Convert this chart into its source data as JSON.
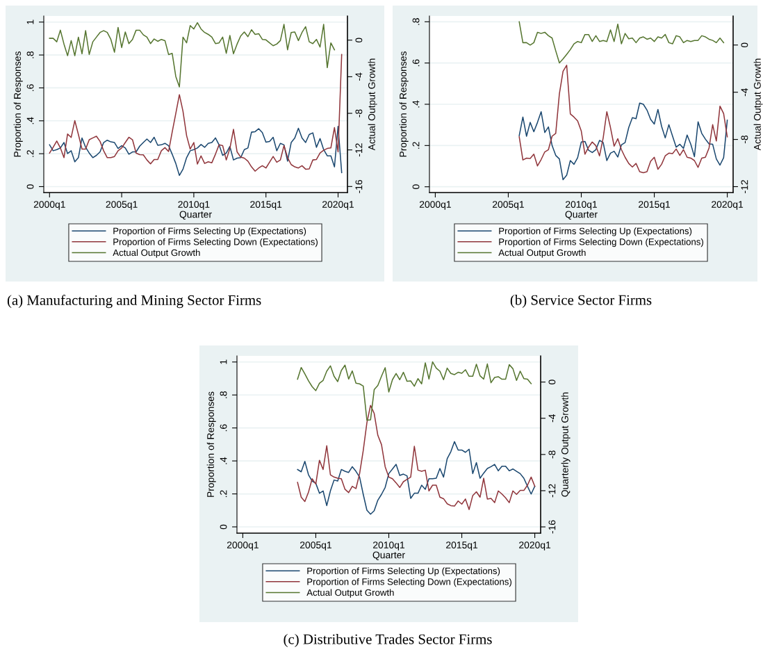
{
  "chart_data": [
    {
      "type": "line",
      "xlabel": "Quarter",
      "ylabel": "Proportion of Responses",
      "y2label": "Actual Output Growth",
      "categories": [
        "2000q1",
        null,
        null,
        null,
        null,
        null,
        null,
        null,
        null,
        null,
        null,
        null,
        null,
        null,
        null,
        null,
        null,
        null,
        null,
        null,
        "2005q1",
        null,
        null,
        null,
        null,
        null,
        null,
        null,
        null,
        null,
        null,
        null,
        null,
        null,
        null,
        null,
        null,
        null,
        null,
        null,
        "2010q1",
        null,
        null,
        null,
        null,
        null,
        null,
        null,
        null,
        null,
        null,
        null,
        null,
        null,
        null,
        null,
        null,
        null,
        null,
        null,
        "2015q1",
        null,
        null,
        null,
        null,
        null,
        null,
        null,
        null,
        null,
        null,
        null,
        null,
        null,
        null,
        null,
        null,
        null,
        null,
        null,
        "2020q1",
        null
      ],
      "ylim": [
        -0.036,
        1.037
      ],
      "yticks": [
        0,
        {
          "value": 0.2,
          "label": ".2"
        },
        {
          "value": 0.4,
          "label": ".4"
        },
        {
          "value": 0.6,
          "label": ".6"
        },
        {
          "value": 0.8,
          "label": ".8"
        },
        1
      ],
      "y2lim": [
        -16.66,
        2.64
      ],
      "y2ticks": [
        -16,
        -12,
        -8,
        -4,
        0
      ],
      "grid": "y",
      "legend": "bottom",
      "annotations": [
        "(a) Manufacturing and Mining Sector Firms"
      ],
      "series": [
        {
          "name": "Proportion of Firms Selecting Up (Expectations)",
          "color": "#1a476f",
          "values": [
            0.254,
            0.218,
            0.225,
            0.235,
            0.268,
            0.201,
            0.218,
            0.151,
            0.176,
            0.296,
            0.239,
            0.204,
            0.176,
            0.19,
            0.211,
            0.268,
            0.282,
            0.272,
            0.268,
            0.232,
            0.249,
            0.235,
            0.197,
            0.211,
            0.211,
            0.246,
            0.268,
            0.289,
            0.268,
            0.3,
            0.251,
            0.254,
            0.263,
            0.249,
            0.197,
            0.141,
            0.068,
            0.106,
            0.176,
            0.218,
            0.225,
            0.235,
            0.256,
            0.239,
            0.263,
            0.268,
            0.296,
            0.254,
            0.19,
            0.204,
            0.244,
            0.162,
            0.173,
            0.176,
            0.225,
            0.235,
            0.331,
            0.334,
            0.352,
            0.328,
            0.27,
            0.275,
            0.3,
            0.218,
            0.263,
            0.254,
            0.155,
            0.268,
            0.296,
            0.355,
            0.296,
            0.268,
            0.317,
            0.327,
            0.239,
            0.292,
            0.225,
            0.187,
            0.187,
            0.12,
            0.366,
            0.085
          ]
        },
        {
          "name": "Proportion of Firms Selecting Down (Expectations)",
          "color": "#90353b",
          "values": [
            0.204,
            0.239,
            0.277,
            0.235,
            0.176,
            0.32,
            0.299,
            0.401,
            0.317,
            0.228,
            0.228,
            0.285,
            0.296,
            0.306,
            0.275,
            0.218,
            0.176,
            0.176,
            0.183,
            0.218,
            0.235,
            0.268,
            0.3,
            0.285,
            0.204,
            0.194,
            0.193,
            0.162,
            0.138,
            0.165,
            0.165,
            0.218,
            0.237,
            0.213,
            0.331,
            0.444,
            0.559,
            0.458,
            0.31,
            0.228,
            0.268,
            0.137,
            0.187,
            0.141,
            0.151,
            0.145,
            0.197,
            0.254,
            0.249,
            0.162,
            0.232,
            0.348,
            0.211,
            0.179,
            0.173,
            0.155,
            0.12,
            0.094,
            0.113,
            0.127,
            0.113,
            0.148,
            0.183,
            0.148,
            0.162,
            0.249,
            0.176,
            0.134,
            0.12,
            0.113,
            0.127,
            0.106,
            0.108,
            0.162,
            0.165,
            0.204,
            0.221,
            0.232,
            0.235,
            0.359,
            0.211,
            0.803
          ]
        },
        {
          "name": "Actual Output Growth",
          "color": "#55752f",
          "axis": "y2",
          "values": [
            0.2,
            0.2,
            -0.18,
            1.09,
            -0.43,
            -1.7,
            -0.05,
            -1.7,
            0.33,
            -1.49,
            1.04,
            -1.57,
            -0.18,
            0.33,
            0.84,
            1.04,
            0.84,
            0.08,
            -1.32,
            1.39,
            -0.81,
            0.89,
            -0.38,
            0.08,
            1.09,
            1.09,
            0.58,
            0.33,
            -0.38,
            0.13,
            -0.13,
            0.08,
            -0.05,
            -1.57,
            -1.44,
            -3.97,
            -5.11,
            0.33,
            -0.3,
            1.59,
            1.22,
            1.9,
            1.22,
            0.84,
            0.63,
            0.33,
            -0.38,
            -0.3,
            0.33,
            -1.44,
            0.51,
            -1.49,
            -0.43,
            0.46,
            0.89,
            0.38,
            1.14,
            0.63,
            0.71,
            0.08,
            0.03,
            -0.3,
            -0.61,
            -0.43,
            -0.05,
            1.72,
            -1.06,
            0.84,
            0.89,
            -0.05,
            0.84,
            1.47,
            -0.18,
            -0.38,
            0.08,
            -0.76,
            1.72,
            -3.01,
            -0.3,
            -1.06,
            null,
            null
          ]
        }
      ]
    },
    {
      "type": "line",
      "xlabel": "Quarter",
      "ylabel": "Proportion of Responses",
      "y2label": "Actual Output Growth",
      "categories": [
        "2000q1",
        null,
        null,
        null,
        null,
        null,
        null,
        null,
        null,
        null,
        null,
        null,
        null,
        null,
        null,
        null,
        null,
        null,
        null,
        null,
        "2005q1",
        null,
        null,
        null,
        null,
        null,
        null,
        null,
        null,
        null,
        null,
        null,
        null,
        null,
        null,
        null,
        null,
        null,
        null,
        null,
        "2010q1",
        null,
        null,
        null,
        null,
        null,
        null,
        null,
        null,
        null,
        null,
        null,
        null,
        null,
        null,
        null,
        null,
        null,
        null,
        null,
        "2015q1",
        null,
        null,
        null,
        null,
        null,
        null,
        null,
        null,
        null,
        null,
        null,
        null,
        null,
        null,
        null,
        null,
        null,
        null,
        null,
        "2020q1"
      ],
      "ylim": [
        -0.028,
        0.828
      ],
      "yticks": [
        0,
        {
          "value": 0.2,
          "label": ".2"
        },
        {
          "value": 0.4,
          "label": ".4"
        },
        {
          "value": 0.6,
          "label": ".6"
        },
        {
          "value": 0.8,
          "label": ".8"
        }
      ],
      "y2lim": [
        -12.5,
        2.46
      ],
      "y2ticks": [
        -12,
        -8,
        -4,
        0
      ],
      "grid": "y",
      "legend": "bottom",
      "annotations": [
        "(b) Service Sector Firms"
      ],
      "series": [
        {
          "name": "Proportion of Firms Selecting Up (Expectations)",
          "color": "#1a476f",
          "values": [
            null,
            null,
            null,
            null,
            null,
            null,
            null,
            null,
            null,
            null,
            null,
            null,
            null,
            null,
            null,
            null,
            null,
            null,
            null,
            null,
            null,
            null,
            null,
            0.248,
            0.338,
            0.245,
            0.312,
            0.267,
            0.312,
            0.364,
            0.263,
            0.29,
            0.2,
            0.152,
            0.135,
            0.034,
            0.056,
            0.127,
            0.109,
            0.141,
            0.217,
            0.22,
            0.177,
            0.166,
            0.18,
            0.225,
            0.214,
            0.127,
            0.163,
            0.172,
            0.144,
            0.203,
            0.214,
            0.287,
            0.335,
            0.33,
            0.406,
            0.4,
            0.372,
            0.327,
            0.304,
            0.375,
            0.293,
            0.237,
            0.301,
            0.246,
            0.192,
            0.206,
            0.186,
            0.251,
            0.206,
            0.146,
            0.315,
            0.259,
            0.231,
            0.208,
            0.206,
            0.135,
            0.105,
            0.141,
            0.323
          ]
        },
        {
          "name": "Proportion of Firms Selecting Down (Expectations)",
          "color": "#90353b",
          "values": [
            null,
            null,
            null,
            null,
            null,
            null,
            null,
            null,
            null,
            null,
            null,
            null,
            null,
            null,
            null,
            null,
            null,
            null,
            null,
            null,
            null,
            null,
            null,
            0.242,
            0.13,
            0.139,
            0.137,
            0.158,
            0.101,
            0.132,
            0.169,
            0.18,
            0.245,
            0.259,
            0.451,
            0.56,
            0.589,
            0.353,
            0.338,
            0.319,
            0.27,
            0.158,
            0.192,
            0.217,
            0.199,
            0.15,
            0.237,
            0.364,
            0.287,
            0.197,
            0.233,
            0.18,
            0.143,
            0.113,
            0.096,
            0.113,
            0.073,
            0.068,
            0.073,
            0.124,
            0.143,
            0.085,
            0.109,
            0.15,
            0.163,
            0.161,
            0.183,
            0.152,
            0.18,
            0.143,
            0.139,
            0.127,
            0.094,
            0.139,
            0.143,
            0.188,
            0.301,
            0.222,
            0.391,
            0.355,
            0.242
          ]
        },
        {
          "name": "Actual Output Growth",
          "color": "#55752f",
          "axis": "y2",
          "values": [
            null,
            null,
            null,
            null,
            null,
            null,
            null,
            null,
            null,
            null,
            null,
            null,
            null,
            null,
            null,
            null,
            null,
            null,
            null,
            null,
            null,
            null,
            null,
            1.97,
            0.2,
            0.2,
            0,
            0.2,
            1.08,
            0.98,
            1.08,
            0.79,
            0.59,
            -0.49,
            -1.51,
            -1.18,
            -0.79,
            -0.39,
            0.1,
            0.3,
            0.2,
            0.89,
            0.89,
            0.3,
            0.79,
            0.3,
            0.39,
            0.3,
            1.28,
            0.3,
            1.77,
            0.1,
            0.98,
            0.53,
            0.59,
            0.2,
            0.59,
            0.69,
            0.49,
            0.59,
            0.3,
            0.69,
            0.59,
            0.89,
            0.2,
            0.1,
            0.79,
            0.69,
            0.2,
            0.39,
            0.3,
            0.39,
            0.39,
            0.79,
            0.69,
            0.49,
            0.39,
            0.2,
            0.59,
            0.2,
            null
          ]
        }
      ]
    },
    {
      "type": "line",
      "xlabel": "Quarter",
      "ylabel": "Proportion of Responses",
      "y2label": "Quarterly Output Growth",
      "categories": [
        "2000q1",
        null,
        null,
        null,
        null,
        null,
        null,
        null,
        null,
        null,
        null,
        null,
        null,
        null,
        null,
        null,
        null,
        null,
        null,
        null,
        "2005q1",
        null,
        null,
        null,
        null,
        null,
        null,
        null,
        null,
        null,
        null,
        null,
        null,
        null,
        null,
        null,
        null,
        null,
        null,
        null,
        "2010q1",
        null,
        null,
        null,
        null,
        null,
        null,
        null,
        null,
        null,
        null,
        null,
        null,
        null,
        null,
        null,
        null,
        null,
        null,
        null,
        "2015q1",
        null,
        null,
        null,
        null,
        null,
        null,
        null,
        null,
        null,
        null,
        null,
        null,
        null,
        null,
        null,
        null,
        null,
        null,
        null,
        "2020q1"
      ],
      "ylim": [
        -0.038,
        1.037
      ],
      "yticks": [
        0,
        {
          "value": 0.2,
          "label": ".2"
        },
        {
          "value": 0.4,
          "label": ".4"
        },
        {
          "value": 0.6,
          "label": ".6"
        },
        {
          "value": 0.8,
          "label": ".8"
        },
        1
      ],
      "y2lim": [
        -16.69,
        2.89
      ],
      "y2ticks": [
        -16,
        -12,
        -8,
        -4,
        0
      ],
      "grid": "y",
      "legend": "bottom",
      "annotations": [
        "(c) Distributive Trades Sector Firms"
      ],
      "series": [
        {
          "name": "Proportion of Firms Selecting Up (Expectations)",
          "color": "#1a476f",
          "values": [
            null,
            null,
            null,
            null,
            null,
            null,
            null,
            null,
            null,
            null,
            null,
            null,
            null,
            null,
            null,
            0.348,
            0.334,
            0.397,
            0.316,
            0.278,
            0.264,
            0.204,
            0.218,
            0.129,
            0.218,
            0.284,
            0.278,
            0.348,
            0.337,
            0.33,
            0.365,
            0.337,
            0.302,
            0.197,
            0.101,
            0.077,
            0.098,
            0.162,
            0.197,
            0.239,
            0.323,
            0.351,
            0.379,
            0.312,
            0.32,
            0.309,
            0.173,
            0.204,
            0.204,
            0.253,
            0.228,
            0.292,
            0.292,
            0.295,
            0.354,
            0.302,
            0.414,
            0.456,
            0.517,
            0.466,
            0.466,
            0.452,
            0.471,
            0.323,
            0.39,
            0.295,
            0.326,
            0.354,
            0.365,
            0.379,
            0.34,
            0.368,
            0.368,
            0.34,
            0.351,
            0.337,
            0.323,
            0.295,
            0.246,
            0.199,
            0.246
          ]
        },
        {
          "name": "Proportion of Firms Selecting Down (Expectations)",
          "color": "#90353b",
          "values": [
            null,
            null,
            null,
            null,
            null,
            null,
            null,
            null,
            null,
            null,
            null,
            null,
            null,
            null,
            null,
            0.27,
            0.18,
            0.154,
            0.211,
            0.292,
            0.26,
            0.404,
            0.348,
            0.492,
            0.316,
            0.302,
            0.295,
            0.292,
            0.228,
            0.208,
            0.246,
            0.232,
            0.323,
            0.463,
            0.632,
            0.737,
            0.688,
            0.555,
            0.499,
            0.365,
            0.302,
            0.292,
            0.267,
            0.239,
            0.274,
            0.288,
            0.302,
            0.489,
            0.344,
            0.337,
            0.344,
            0.218,
            0.253,
            0.253,
            0.18,
            0.171,
            0.14,
            0.129,
            0.126,
            0.157,
            0.138,
            0.169,
            0.105,
            0.19,
            0.213,
            0.18,
            0.295,
            0.169,
            0.173,
            0.147,
            0.218,
            0.199,
            0.176,
            0.147,
            0.218,
            0.197,
            0.221,
            0.221,
            0.253,
            0.302,
            0.246
          ]
        },
        {
          "name": "Actual Output Growth",
          "color": "#55752f",
          "axis": "y2",
          "values": [
            null,
            null,
            null,
            null,
            null,
            null,
            null,
            null,
            null,
            null,
            null,
            null,
            null,
            null,
            null,
            0.31,
            1.61,
            0.9,
            0.13,
            -0.51,
            -0.95,
            -0.13,
            0.18,
            1.2,
            1.79,
            0.64,
            0.05,
            1.28,
            1.87,
            0.33,
            1.23,
            -0.13,
            -0.2,
            -0.44,
            -4.22,
            -4.17,
            -0.84,
            -0.38,
            0.64,
            1.59,
            -1.1,
            0.26,
            0.95,
            0.26,
            1.08,
            0.08,
            0.13,
            -0.46,
            0.38,
            -0.2,
            2.12,
            0.33,
            2.23,
            1.54,
            1.2,
            0.26,
            1.54,
            0.95,
            0.82,
            1.08,
            0.97,
            1.36,
            0.64,
            0.64,
            1.97,
            0.69,
            0.33,
            2.0,
            -0.08,
            0.51,
            0.59,
            0.31,
            0.31,
            1.92,
            1.48,
            0.18,
            1.2,
            0.38,
            0.31,
            -0.18,
            null
          ]
        }
      ]
    }
  ]
}
